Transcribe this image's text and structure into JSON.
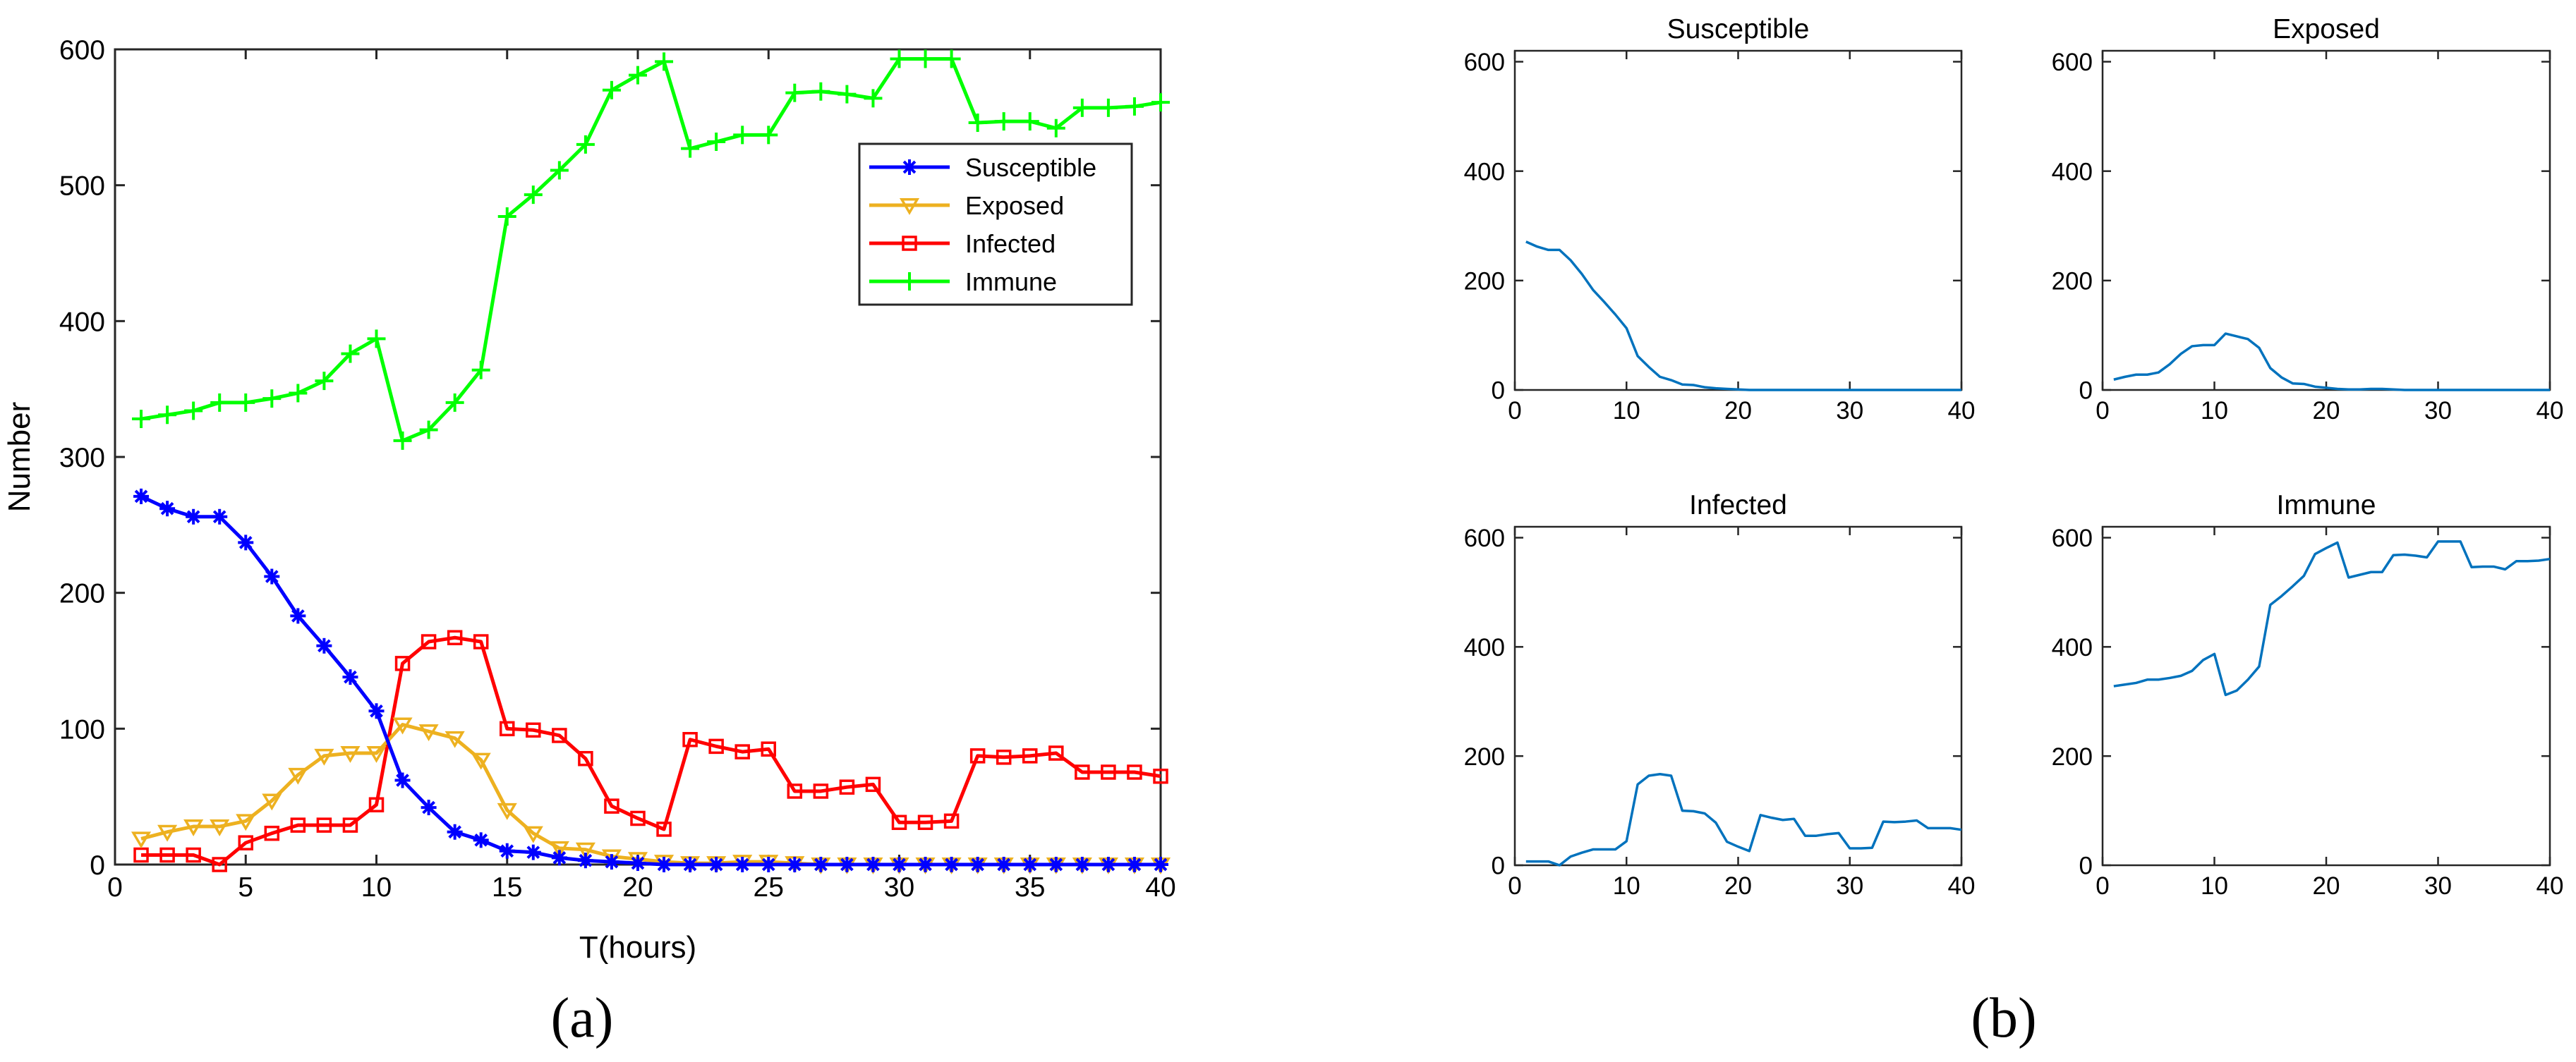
{
  "panel_labels": {
    "a": "(a)",
    "b": "(b)"
  },
  "chart_data": [
    {
      "type": "line",
      "panel": "a",
      "xlabel": "T(hours)",
      "ylabel": "Number",
      "xlim": [
        0,
        40
      ],
      "ylim": [
        0,
        600
      ],
      "xticks": [
        0,
        5,
        10,
        15,
        20,
        25,
        30,
        35,
        40
      ],
      "yticks": [
        0,
        100,
        200,
        300,
        400,
        500,
        600
      ],
      "legend_position": "upper-right",
      "grid": false,
      "x": [
        1,
        2,
        3,
        4,
        5,
        6,
        7,
        8,
        9,
        10,
        11,
        12,
        13,
        14,
        15,
        16,
        17,
        18,
        19,
        20,
        21,
        22,
        23,
        24,
        25,
        26,
        27,
        28,
        29,
        30,
        31,
        32,
        33,
        34,
        35,
        36,
        37,
        38,
        39,
        40
      ],
      "series": [
        {
          "name": "Susceptible",
          "color": "#0000ff",
          "marker": "asterisk",
          "values": [
            271,
            262,
            256,
            256,
            237,
            212,
            183,
            161,
            138,
            113,
            62,
            42,
            24,
            18,
            10,
            9,
            5,
            3,
            2,
            1,
            0,
            0,
            0,
            0,
            0,
            0,
            0,
            0,
            0,
            0,
            0,
            0,
            0,
            0,
            0,
            0,
            0,
            0,
            0,
            0
          ]
        },
        {
          "name": "Exposed",
          "color": "#edb120",
          "marker": "triangle-down",
          "values": [
            19,
            24,
            28,
            28,
            32,
            47,
            66,
            80,
            82,
            82,
            103,
            98,
            93,
            77,
            40,
            23,
            12,
            11,
            6,
            4,
            2,
            1,
            1,
            2,
            2,
            1,
            0,
            0,
            0,
            0,
            0,
            0,
            0,
            0,
            0,
            0,
            0,
            0,
            0,
            0
          ]
        },
        {
          "name": "Infected",
          "color": "#ff0000",
          "marker": "square",
          "values": [
            7,
            7,
            7,
            0,
            16,
            23,
            29,
            29,
            29,
            44,
            148,
            164,
            167,
            164,
            100,
            99,
            95,
            78,
            43,
            34,
            26,
            92,
            87,
            83,
            85,
            54,
            54,
            57,
            59,
            31,
            31,
            32,
            80,
            79,
            80,
            82,
            68,
            68,
            68,
            65
          ]
        },
        {
          "name": "Immune",
          "color": "#00ff00",
          "marker": "plus",
          "values": [
            328,
            331,
            334,
            340,
            340,
            343,
            347,
            356,
            376,
            387,
            312,
            320,
            340,
            364,
            477,
            493,
            511,
            530,
            570,
            581,
            591,
            527,
            532,
            537,
            537,
            568,
            569,
            567,
            564,
            593,
            593,
            593,
            546,
            547,
            547,
            542,
            557,
            557,
            558,
            561
          ]
        }
      ]
    },
    {
      "type": "line",
      "panel": "b",
      "title": "Susceptible",
      "color": "#0072bd",
      "xlim": [
        0,
        40
      ],
      "ylim": [
        0,
        620
      ],
      "xticks": [
        0,
        10,
        20,
        30,
        40
      ],
      "yticks": [
        0,
        200,
        400,
        600
      ],
      "x": [
        1,
        2,
        3,
        4,
        5,
        6,
        7,
        8,
        9,
        10,
        11,
        12,
        13,
        14,
        15,
        16,
        17,
        18,
        19,
        20,
        21,
        22,
        23,
        24,
        25,
        26,
        27,
        28,
        29,
        30,
        31,
        32,
        33,
        34,
        35,
        36,
        37,
        38,
        39,
        40
      ],
      "values": [
        271,
        262,
        256,
        256,
        237,
        212,
        183,
        161,
        138,
        113,
        62,
        42,
        24,
        18,
        10,
        9,
        5,
        3,
        2,
        1,
        0,
        0,
        0,
        0,
        0,
        0,
        0,
        0,
        0,
        0,
        0,
        0,
        0,
        0,
        0,
        0,
        0,
        0,
        0,
        0
      ]
    },
    {
      "type": "line",
      "panel": "b",
      "title": "Exposed",
      "color": "#0072bd",
      "xlim": [
        0,
        40
      ],
      "ylim": [
        0,
        620
      ],
      "xticks": [
        0,
        10,
        20,
        30,
        40
      ],
      "yticks": [
        0,
        200,
        400,
        600
      ],
      "x": [
        1,
        2,
        3,
        4,
        5,
        6,
        7,
        8,
        9,
        10,
        11,
        12,
        13,
        14,
        15,
        16,
        17,
        18,
        19,
        20,
        21,
        22,
        23,
        24,
        25,
        26,
        27,
        28,
        29,
        30,
        31,
        32,
        33,
        34,
        35,
        36,
        37,
        38,
        39,
        40
      ],
      "values": [
        19,
        24,
        28,
        28,
        32,
        47,
        66,
        80,
        82,
        82,
        103,
        98,
        93,
        77,
        40,
        23,
        12,
        11,
        6,
        4,
        2,
        1,
        1,
        2,
        2,
        1,
        0,
        0,
        0,
        0,
        0,
        0,
        0,
        0,
        0,
        0,
        0,
        0,
        0,
        0
      ]
    },
    {
      "type": "line",
      "panel": "b",
      "title": "Infected",
      "color": "#0072bd",
      "xlim": [
        0,
        40
      ],
      "ylim": [
        0,
        620
      ],
      "xticks": [
        0,
        10,
        20,
        30,
        40
      ],
      "yticks": [
        0,
        200,
        400,
        600
      ],
      "x": [
        1,
        2,
        3,
        4,
        5,
        6,
        7,
        8,
        9,
        10,
        11,
        12,
        13,
        14,
        15,
        16,
        17,
        18,
        19,
        20,
        21,
        22,
        23,
        24,
        25,
        26,
        27,
        28,
        29,
        30,
        31,
        32,
        33,
        34,
        35,
        36,
        37,
        38,
        39,
        40
      ],
      "values": [
        7,
        7,
        7,
        0,
        16,
        23,
        29,
        29,
        29,
        44,
        148,
        164,
        167,
        164,
        100,
        99,
        95,
        78,
        43,
        34,
        26,
        92,
        87,
        83,
        85,
        54,
        54,
        57,
        59,
        31,
        31,
        32,
        80,
        79,
        80,
        82,
        68,
        68,
        68,
        65
      ]
    },
    {
      "type": "line",
      "panel": "b",
      "title": "Immune",
      "color": "#0072bd",
      "xlim": [
        0,
        40
      ],
      "ylim": [
        0,
        620
      ],
      "xticks": [
        0,
        10,
        20,
        30,
        40
      ],
      "yticks": [
        0,
        200,
        400,
        600
      ],
      "x": [
        1,
        2,
        3,
        4,
        5,
        6,
        7,
        8,
        9,
        10,
        11,
        12,
        13,
        14,
        15,
        16,
        17,
        18,
        19,
        20,
        21,
        22,
        23,
        24,
        25,
        26,
        27,
        28,
        29,
        30,
        31,
        32,
        33,
        34,
        35,
        36,
        37,
        38,
        39,
        40
      ],
      "values": [
        328,
        331,
        334,
        340,
        340,
        343,
        347,
        356,
        376,
        387,
        312,
        320,
        340,
        364,
        477,
        493,
        511,
        530,
        570,
        581,
        591,
        527,
        532,
        537,
        537,
        568,
        569,
        567,
        564,
        593,
        593,
        593,
        546,
        547,
        547,
        542,
        557,
        557,
        558,
        561
      ]
    }
  ]
}
